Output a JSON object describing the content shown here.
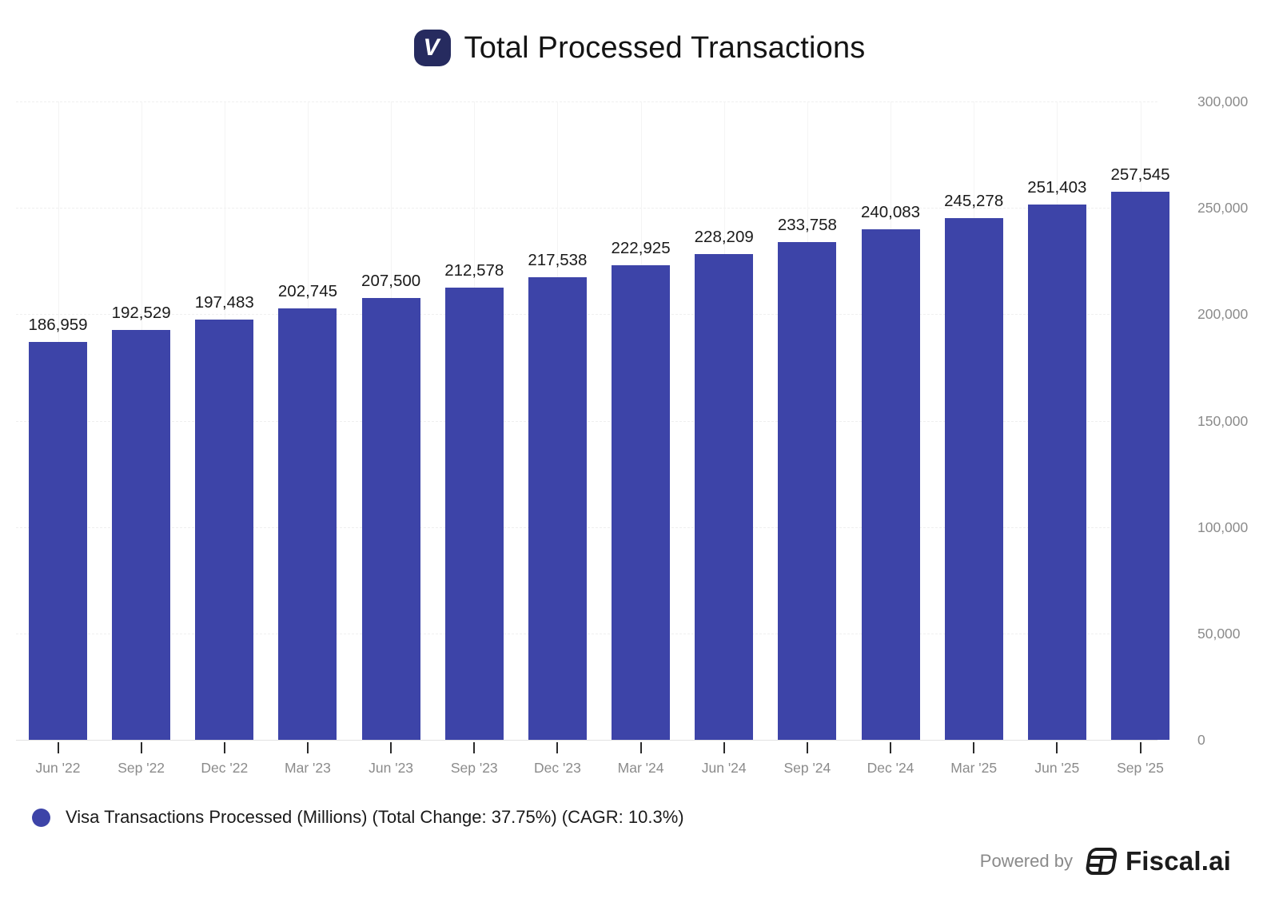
{
  "header": {
    "logo_letter": "V",
    "title": "Total Processed Transactions"
  },
  "chart_data": {
    "type": "bar",
    "title": "Total Processed Transactions",
    "categories": [
      "Jun '22",
      "Sep '22",
      "Dec '22",
      "Mar '23",
      "Jun '23",
      "Sep '23",
      "Dec '23",
      "Mar '24",
      "Jun '24",
      "Sep '24",
      "Dec '24",
      "Mar '25",
      "Jun '25",
      "Sep '25"
    ],
    "series": [
      {
        "name": "Visa Transactions Processed (Millions)",
        "values": [
          186959,
          192529,
          197483,
          202745,
          207500,
          212578,
          217538,
          222925,
          228209,
          233758,
          240083,
          245278,
          251403,
          257545
        ]
      }
    ],
    "xlabel": "",
    "ylabel": "",
    "ylim": [
      0,
      300000
    ],
    "yticks": [
      0,
      50000,
      100000,
      150000,
      200000,
      250000,
      300000
    ],
    "grid": true,
    "legend_position": "bottom-left",
    "y_axis_side": "right",
    "data_labels": true
  },
  "legend": {
    "label": "Visa Transactions Processed (Millions) (Total Change: 37.75%) (CAGR: 10.3%)"
  },
  "footer": {
    "powered_by": "Powered by",
    "brand": "Fiscal.ai"
  },
  "colors": {
    "bar": "#3d44a8",
    "logo_bg": "#262b5f",
    "title_text": "#141414",
    "data_label_text": "#1a1a1a",
    "axis_label_text": "#8b8b8b",
    "gridline": "#efefef",
    "axis_line": "#e3e3e3"
  }
}
